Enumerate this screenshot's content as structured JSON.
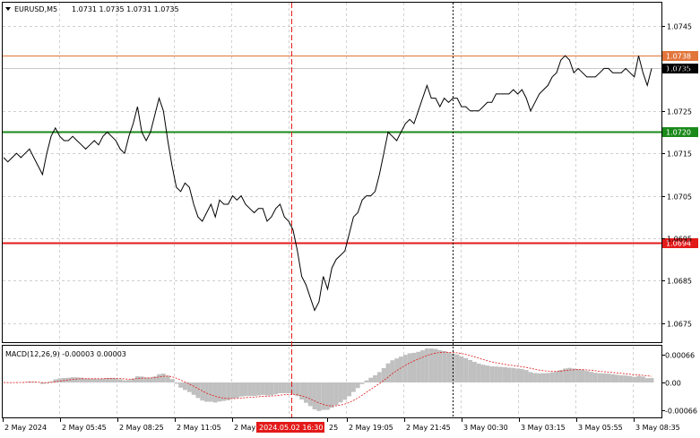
{
  "header": {
    "dropdown_icon": "triangle-down-icon",
    "symbol": "EURUSD,M5",
    "ohlc": "1.0731 1.0735 1.0731 1.0735"
  },
  "price_axis": {
    "ticks": [
      "1.0745",
      "1.0735",
      "1.0725",
      "1.0715",
      "1.0705",
      "1.0695",
      "1.0685",
      "1.0675"
    ],
    "tick_values": [
      1.0745,
      1.0735,
      1.0725,
      1.0715,
      1.0705,
      1.0695,
      1.0685,
      1.0675
    ],
    "range": [
      1.06705,
      1.07505
    ]
  },
  "levels": [
    {
      "label": "1.0738",
      "value": 1.0738,
      "color": "#e2753b"
    },
    {
      "label": "1.0735",
      "value": 1.0735,
      "color": "#c8c8c8"
    },
    {
      "label": "1.0720",
      "value": 1.072,
      "color": "#1a8a1a"
    },
    {
      "label": "1.0694",
      "value": 1.0694,
      "color": "#e31a1a"
    }
  ],
  "macd": {
    "title": "MACD(12,26,9) -0.00003 0.00003",
    "ticks": [
      "0.00066",
      "0.00",
      "-0.00066"
    ],
    "tick_values": [
      0.00066,
      0,
      -0.00066
    ]
  },
  "time_axis": {
    "labels": [
      "2 May 2024",
      "2 May 05:45",
      "2 May 08:25",
      "2 May 11:05",
      "2 May",
      "25",
      "2 May 19:05",
      "2 May 21:45",
      "3 May 00:30",
      "3 May 03:15",
      "3 May 05:55",
      "3 May 08:35"
    ],
    "crosshair_label": "2024.05.02 16:30"
  },
  "colors": {
    "price_line": "#000000",
    "grid": "#c0c0c0",
    "crosshair": "#e31a1a",
    "histogram": "#c0c0c0",
    "signal": "#e31a1a",
    "border": "#000000"
  },
  "chart_data": {
    "type": "line",
    "title": "EURUSD,M5",
    "ylim": [
      1.06705,
      1.07505
    ],
    "series": [
      {
        "name": "EURUSD",
        "values": [
          1.0714,
          1.0713,
          1.0714,
          1.0715,
          1.0714,
          1.0715,
          1.0716,
          1.0714,
          1.0712,
          1.071,
          1.0715,
          1.0719,
          1.0721,
          1.0719,
          1.0718,
          1.0718,
          1.0719,
          1.0718,
          1.0717,
          1.0716,
          1.0717,
          1.0718,
          1.0717,
          1.0719,
          1.072,
          1.0719,
          1.0718,
          1.0716,
          1.0715,
          1.0719,
          1.0722,
          1.0726,
          1.072,
          1.0718,
          1.072,
          1.0724,
          1.0728,
          1.0725,
          1.0718,
          1.0712,
          1.0707,
          1.0706,
          1.0708,
          1.0707,
          1.0703,
          1.07,
          1.0699,
          1.0701,
          1.0703,
          1.07,
          1.0704,
          1.0703,
          1.0703,
          1.0705,
          1.0704,
          1.0705,
          1.0703,
          1.0702,
          1.0701,
          1.0702,
          1.0702,
          1.0699,
          1.07,
          1.0702,
          1.0703,
          1.07,
          1.0699,
          1.0697,
          1.0692,
          1.0686,
          1.0684,
          1.0681,
          1.0678,
          1.068,
          1.0686,
          1.0683,
          1.0688,
          1.069,
          1.0691,
          1.0692,
          1.0696,
          1.07,
          1.0701,
          1.0704,
          1.0705,
          1.0705,
          1.0706,
          1.071,
          1.0715,
          1.072,
          1.0719,
          1.0718,
          1.072,
          1.0722,
          1.0723,
          1.0722,
          1.0725,
          1.0728,
          1.0731,
          1.0728,
          1.0728,
          1.0726,
          1.0728,
          1.0727,
          1.0728,
          1.0728,
          1.0726,
          1.0726,
          1.0725,
          1.0725,
          1.0725,
          1.0726,
          1.0727,
          1.0727,
          1.0729,
          1.0729,
          1.0729,
          1.0729,
          1.073,
          1.0729,
          1.073,
          1.0728,
          1.0725,
          1.0727,
          1.0729,
          1.073,
          1.0731,
          1.0733,
          1.0734,
          1.0737,
          1.0738,
          1.0737,
          1.0734,
          1.0735,
          1.0734,
          1.0733,
          1.0733,
          1.0733,
          1.0734,
          1.0735,
          1.0735,
          1.0734,
          1.0734,
          1.0734,
          1.0735,
          1.0734,
          1.0733,
          1.0738,
          1.0734,
          1.0731,
          1.0735
        ]
      }
    ]
  }
}
